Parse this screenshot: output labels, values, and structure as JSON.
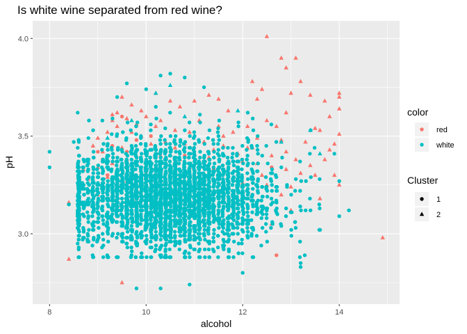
{
  "chart_data": {
    "type": "scatter",
    "title": "Is white wine separated from red wine?",
    "xlabel": "alcohol",
    "ylabel": "pH",
    "xlim": [
      7.65,
      15.25
    ],
    "ylim": [
      2.64,
      4.09
    ],
    "x_ticks": [
      8,
      10,
      12,
      14
    ],
    "x_tick_labels": [
      "8",
      "10",
      "12",
      "14"
    ],
    "y_ticks": [
      3.0,
      3.5,
      4.0
    ],
    "y_tick_labels": [
      "3.0",
      "3.5",
      "4.0"
    ],
    "grid": true,
    "legend_position": "right",
    "legends": [
      {
        "title": "color",
        "key": "color",
        "items": [
          {
            "label": "red",
            "color": "#F8766D",
            "shape": "circle"
          },
          {
            "label": "white",
            "color": "#00BFC4",
            "shape": "circle"
          }
        ]
      },
      {
        "title": "Cluster",
        "key": "cluster",
        "items": [
          {
            "label": "1",
            "color": "#000000",
            "shape": "circle"
          },
          {
            "label": "2",
            "color": "#000000",
            "shape": "triangle"
          }
        ]
      }
    ],
    "series": [
      {
        "color": "red",
        "cluster": "2",
        "shape": "triangle",
        "hex": "#F8766D",
        "points": [
          [
            12.5,
            4.01
          ],
          [
            12.8,
            3.9
          ],
          [
            13.1,
            3.9
          ],
          [
            12.9,
            3.85
          ],
          [
            13.2,
            3.78
          ],
          [
            13.4,
            3.71
          ],
          [
            12.2,
            3.78
          ],
          [
            12.4,
            3.74
          ],
          [
            12.9,
            3.62
          ],
          [
            13.0,
            3.72
          ],
          [
            13.7,
            3.68
          ],
          [
            14.0,
            3.72
          ],
          [
            14.0,
            3.7
          ],
          [
            14.0,
            3.64
          ],
          [
            13.8,
            3.6
          ],
          [
            12.3,
            3.69
          ],
          [
            11.5,
            3.69
          ],
          [
            11.3,
            3.71
          ],
          [
            11.0,
            3.68
          ],
          [
            10.5,
            3.68
          ],
          [
            9.5,
            3.7
          ],
          [
            9.7,
            3.66
          ],
          [
            9.3,
            3.61
          ],
          [
            9.9,
            3.63
          ],
          [
            10.2,
            3.72
          ],
          [
            10.7,
            3.65
          ],
          [
            11.7,
            3.63
          ],
          [
            12.5,
            3.58
          ],
          [
            12.7,
            3.55
          ],
          [
            13.5,
            3.54
          ],
          [
            13.6,
            3.53
          ],
          [
            14.0,
            3.51
          ],
          [
            13.9,
            3.46
          ],
          [
            12.8,
            3.48
          ],
          [
            12.3,
            3.49
          ],
          [
            11.8,
            3.52
          ],
          [
            11.5,
            3.55
          ],
          [
            11.1,
            3.58
          ],
          [
            10.9,
            3.52
          ],
          [
            10.3,
            3.58
          ],
          [
            9.8,
            3.56
          ],
          [
            9.4,
            3.55
          ],
          [
            9.2,
            3.52
          ],
          [
            9.0,
            3.49
          ],
          [
            8.9,
            3.45
          ],
          [
            9.1,
            3.42
          ],
          [
            9.5,
            3.44
          ],
          [
            9.8,
            3.4
          ],
          [
            10.1,
            3.46
          ],
          [
            10.4,
            3.47
          ],
          [
            10.6,
            3.44
          ],
          [
            10.8,
            3.46
          ],
          [
            11.2,
            3.47
          ],
          [
            11.4,
            3.43
          ],
          [
            11.6,
            3.45
          ],
          [
            11.9,
            3.41
          ],
          [
            12.1,
            3.44
          ],
          [
            12.6,
            3.4
          ],
          [
            12.9,
            3.42
          ],
          [
            13.1,
            3.38
          ],
          [
            13.4,
            3.35
          ],
          [
            13.7,
            3.38
          ],
          [
            13.5,
            3.3
          ],
          [
            13.2,
            3.31
          ],
          [
            12.9,
            3.33
          ],
          [
            12.3,
            3.36
          ],
          [
            12.0,
            3.37
          ],
          [
            11.7,
            3.36
          ],
          [
            11.3,
            3.39
          ],
          [
            11.0,
            3.41
          ],
          [
            10.7,
            3.38
          ],
          [
            10.3,
            3.4
          ],
          [
            10.0,
            3.37
          ],
          [
            9.6,
            3.38
          ],
          [
            9.3,
            3.36
          ],
          [
            9.0,
            3.34
          ],
          [
            8.7,
            3.33
          ],
          [
            8.8,
            3.28
          ],
          [
            9.2,
            3.29
          ],
          [
            9.6,
            3.27
          ],
          [
            10.0,
            3.31
          ],
          [
            10.5,
            3.32
          ],
          [
            11.0,
            3.3
          ],
          [
            11.5,
            3.28
          ],
          [
            12.0,
            3.26
          ],
          [
            12.5,
            3.25
          ],
          [
            13.0,
            3.24
          ],
          [
            13.6,
            3.18
          ],
          [
            13.9,
            3.3
          ],
          [
            14.0,
            3.25
          ],
          [
            9.4,
            3.62
          ],
          [
            9.6,
            3.59
          ],
          [
            10.0,
            3.6
          ],
          [
            10.2,
            3.55
          ],
          [
            9.7,
            3.52
          ],
          [
            9.3,
            3.58
          ],
          [
            8.4,
            3.16
          ],
          [
            8.4,
            2.87
          ],
          [
            9.5,
            2.75
          ],
          [
            14.9,
            2.98
          ],
          [
            12.2,
            3.44
          ],
          [
            13.0,
            3.12
          ],
          [
            12.6,
            3.05
          ],
          [
            11.8,
            3.1
          ],
          [
            11.3,
            3.15
          ],
          [
            10.7,
            3.2
          ],
          [
            10.2,
            3.22
          ],
          [
            9.8,
            3.18
          ],
          [
            9.4,
            3.14
          ],
          [
            9.0,
            3.2
          ],
          [
            12.8,
            3.2
          ],
          [
            12.4,
            3.3
          ],
          [
            11.9,
            3.32
          ],
          [
            10.9,
            3.34
          ],
          [
            9.9,
            3.5
          ],
          [
            10.6,
            3.53
          ],
          [
            11.6,
            3.5
          ],
          [
            12.1,
            3.55
          ],
          [
            13.3,
            3.47
          ],
          [
            13.8,
            3.43
          ]
        ]
      },
      {
        "color": "red",
        "cluster": "1",
        "shape": "circle",
        "hex": "#F8766D",
        "points": [
          [
            12.7,
            2.89
          ],
          [
            9.5,
            3.6
          ],
          [
            9.8,
            3.48
          ],
          [
            10.1,
            3.5
          ],
          [
            9.3,
            3.45
          ],
          [
            9.6,
            3.42
          ],
          [
            10.4,
            3.42
          ],
          [
            10.8,
            3.4
          ],
          [
            11.1,
            3.36
          ],
          [
            11.4,
            3.33
          ],
          [
            10.0,
            3.33
          ],
          [
            9.7,
            3.3
          ],
          [
            9.1,
            3.38
          ],
          [
            10.6,
            3.27
          ],
          [
            11.2,
            3.25
          ],
          [
            11.8,
            3.22
          ],
          [
            12.2,
            3.2
          ],
          [
            9.4,
            3.25
          ],
          [
            9.9,
            3.22
          ],
          [
            10.3,
            3.18
          ],
          [
            10.9,
            3.14
          ],
          [
            11.6,
            3.17
          ],
          [
            9.2,
            3.3
          ],
          [
            10.2,
            3.35
          ],
          [
            9.0,
            3.42
          ],
          [
            12.6,
            3.34
          ]
        ]
      },
      {
        "color": "white",
        "cluster": "2",
        "shape": "triangle",
        "hex": "#00BFC4",
        "points": [
          [
            10.2,
            3.72
          ],
          [
            9.7,
            3.58
          ],
          [
            10.5,
            3.76
          ],
          [
            13.6,
            3.41
          ],
          [
            13.4,
            3.53
          ],
          [
            11.9,
            3.63
          ],
          [
            12.8,
            3.47
          ],
          [
            9.2,
            3.49
          ],
          [
            10.8,
            3.6
          ]
        ]
      },
      {
        "color": "white",
        "cluster": "1",
        "shape": "circle",
        "hex": "#00BFC4",
        "generated": true,
        "count": 3200,
        "points": [
          [
            8.0,
            3.42
          ],
          [
            8.0,
            3.34
          ],
          [
            10.3,
            3.81
          ],
          [
            10.5,
            3.82
          ],
          [
            10.8,
            3.8
          ],
          [
            9.6,
            3.77
          ],
          [
            11.2,
            3.75
          ],
          [
            10.0,
            3.74
          ],
          [
            9.4,
            3.7
          ],
          [
            10.2,
            3.65
          ],
          [
            14.2,
            3.12
          ],
          [
            14.0,
            3.27
          ],
          [
            14.0,
            3.09
          ],
          [
            13.9,
            3.41
          ],
          [
            9.8,
            2.72
          ],
          [
            10.3,
            2.72
          ],
          [
            10.9,
            2.74
          ],
          [
            12.0,
            2.8
          ],
          [
            13.2,
            2.85
          ],
          [
            13.2,
            2.83
          ],
          [
            8.5,
            3.47
          ],
          [
            8.4,
            3.15
          ]
        ]
      }
    ]
  }
}
